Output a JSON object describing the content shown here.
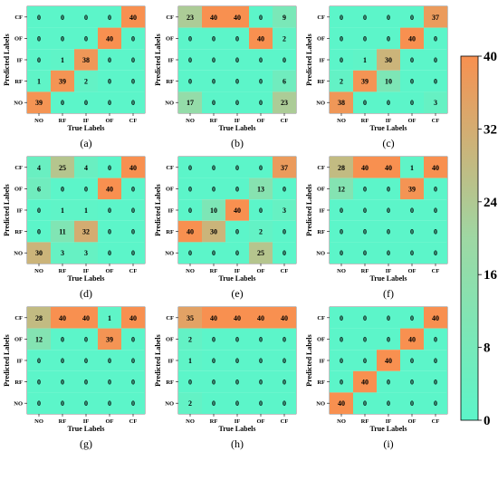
{
  "chart_data": {
    "type": "heatmap",
    "row_labels": [
      "CF",
      "OF",
      "IF",
      "RF",
      "NO"
    ],
    "col_labels": [
      "NO",
      "RF",
      "IF",
      "OF",
      "CF"
    ],
    "xlabel": "True Labels",
    "ylabel": "Predicted Labels",
    "colorbar": {
      "min": 0,
      "max": 40,
      "ticks": [
        "40",
        "32",
        "24",
        "16",
        "8",
        "0"
      ],
      "colors": {
        "low": "#5cf5c9",
        "mid": "#9ed7a3",
        "high": "#f89050"
      }
    },
    "panels": [
      {
        "caption": "(a)",
        "matrix": [
          [
            0,
            0,
            0,
            0,
            40
          ],
          [
            0,
            0,
            0,
            40,
            0
          ],
          [
            0,
            1,
            38,
            0,
            0
          ],
          [
            1,
            39,
            2,
            0,
            0
          ],
          [
            39,
            0,
            0,
            0,
            0
          ]
        ]
      },
      {
        "caption": "(b)",
        "matrix": [
          [
            23,
            40,
            40,
            0,
            9
          ],
          [
            0,
            0,
            0,
            40,
            2
          ],
          [
            0,
            0,
            0,
            0,
            0
          ],
          [
            0,
            0,
            0,
            0,
            6
          ],
          [
            17,
            0,
            0,
            0,
            23
          ]
        ]
      },
      {
        "caption": "(c)",
        "matrix": [
          [
            0,
            0,
            0,
            0,
            37
          ],
          [
            0,
            0,
            0,
            40,
            0
          ],
          [
            0,
            1,
            30,
            0,
            0
          ],
          [
            2,
            39,
            10,
            0,
            0
          ],
          [
            38,
            0,
            0,
            0,
            3
          ]
        ]
      },
      {
        "caption": "(d)",
        "matrix": [
          [
            4,
            25,
            4,
            0,
            40
          ],
          [
            6,
            0,
            0,
            40,
            0
          ],
          [
            0,
            1,
            1,
            0,
            0
          ],
          [
            0,
            11,
            32,
            0,
            0
          ],
          [
            30,
            3,
            3,
            0,
            0
          ]
        ]
      },
      {
        "caption": "(e)",
        "matrix": [
          [
            0,
            0,
            0,
            0,
            37
          ],
          [
            0,
            0,
            0,
            13,
            0
          ],
          [
            0,
            10,
            40,
            0,
            3
          ],
          [
            40,
            30,
            0,
            2,
            0
          ],
          [
            0,
            0,
            0,
            25,
            0
          ]
        ]
      },
      {
        "caption": "(f)",
        "matrix": [
          [
            28,
            40,
            40,
            1,
            40
          ],
          [
            12,
            0,
            0,
            39,
            0
          ],
          [
            0,
            0,
            0,
            0,
            0
          ],
          [
            0,
            0,
            0,
            0,
            0
          ],
          [
            0,
            0,
            0,
            0,
            0
          ]
        ]
      },
      {
        "caption": "(g)",
        "matrix": [
          [
            28,
            40,
            40,
            1,
            40
          ],
          [
            12,
            0,
            0,
            39,
            0
          ],
          [
            0,
            0,
            0,
            0,
            0
          ],
          [
            0,
            0,
            0,
            0,
            0
          ],
          [
            0,
            0,
            0,
            0,
            0
          ]
        ]
      },
      {
        "caption": "(h)",
        "matrix": [
          [
            35,
            40,
            40,
            40,
            40
          ],
          [
            2,
            0,
            0,
            0,
            0
          ],
          [
            1,
            0,
            0,
            0,
            0
          ],
          [
            0,
            0,
            0,
            0,
            0
          ],
          [
            2,
            0,
            0,
            0,
            0
          ]
        ]
      },
      {
        "caption": "(i)",
        "matrix": [
          [
            0,
            0,
            0,
            0,
            40
          ],
          [
            0,
            0,
            0,
            40,
            0
          ],
          [
            0,
            0,
            40,
            0,
            0
          ],
          [
            0,
            40,
            0,
            0,
            0
          ],
          [
            40,
            0,
            0,
            0,
            0
          ]
        ]
      }
    ]
  }
}
